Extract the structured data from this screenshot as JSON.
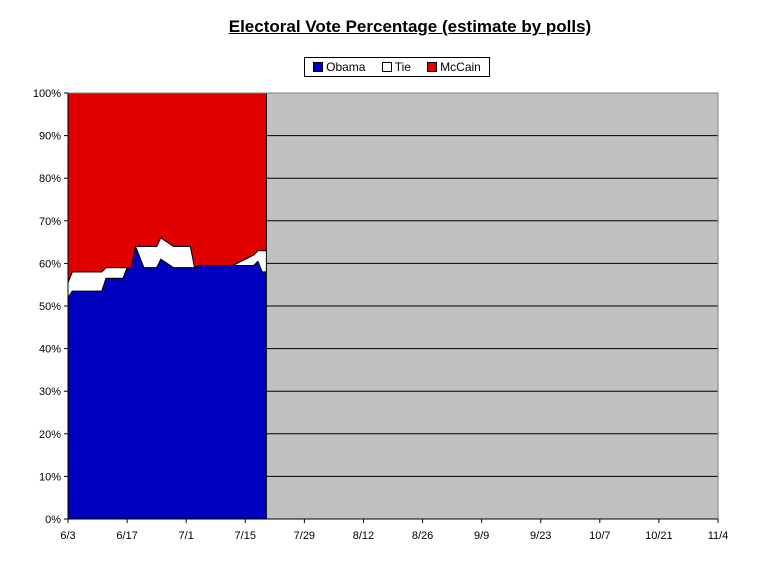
{
  "chart_data": {
    "type": "area",
    "title": "Electoral Vote Percentage (estimate by polls)",
    "xlabel": "",
    "ylabel": "",
    "x_tick_labels": [
      "6/3",
      "6/17",
      "7/1",
      "7/15",
      "7/29",
      "8/12",
      "8/26",
      "9/9",
      "9/23",
      "10/7",
      "10/21",
      "11/4"
    ],
    "y_tick_labels": [
      "0%",
      "10%",
      "20%",
      "30%",
      "40%",
      "50%",
      "60%",
      "70%",
      "80%",
      "90%",
      "100%"
    ],
    "ylim": [
      0,
      100
    ],
    "xlim_days": [
      0,
      154
    ],
    "grid": true,
    "legend_placement": "top-center",
    "plot_background": "#c0c0c0",
    "x_day_offsets": [
      0,
      1,
      8,
      9,
      13,
      14,
      15,
      16,
      18,
      19,
      21,
      22,
      25,
      26,
      28,
      29,
      30,
      31,
      38,
      39,
      44,
      45,
      46,
      47
    ],
    "series": [
      {
        "name": "Obama",
        "color": "#0000c0",
        "values": [
          52,
          53.5,
          53.5,
          56.5,
          56.5,
          59,
          59,
          64,
          59,
          59,
          59,
          61,
          59,
          59,
          59,
          59,
          59,
          59.5,
          59.5,
          59.5,
          59.5,
          60.5,
          58,
          58
        ]
      },
      {
        "name": "Tie",
        "color": "#ffffff",
        "values": [
          3.5,
          4.5,
          4.5,
          2.5,
          2.5,
          0,
          0,
          0,
          5,
          5,
          5,
          5,
          5,
          5,
          5,
          5,
          0,
          0,
          0,
          0,
          2.5,
          2.5,
          5,
          5
        ]
      },
      {
        "name": "McCain",
        "color": "#e00000",
        "values": [
          44.5,
          42,
          42,
          41,
          41,
          41,
          41,
          36,
          36,
          36,
          36,
          34,
          36,
          36,
          36,
          36,
          41,
          40.5,
          40.5,
          40.5,
          38,
          37,
          37,
          37
        ]
      }
    ]
  }
}
